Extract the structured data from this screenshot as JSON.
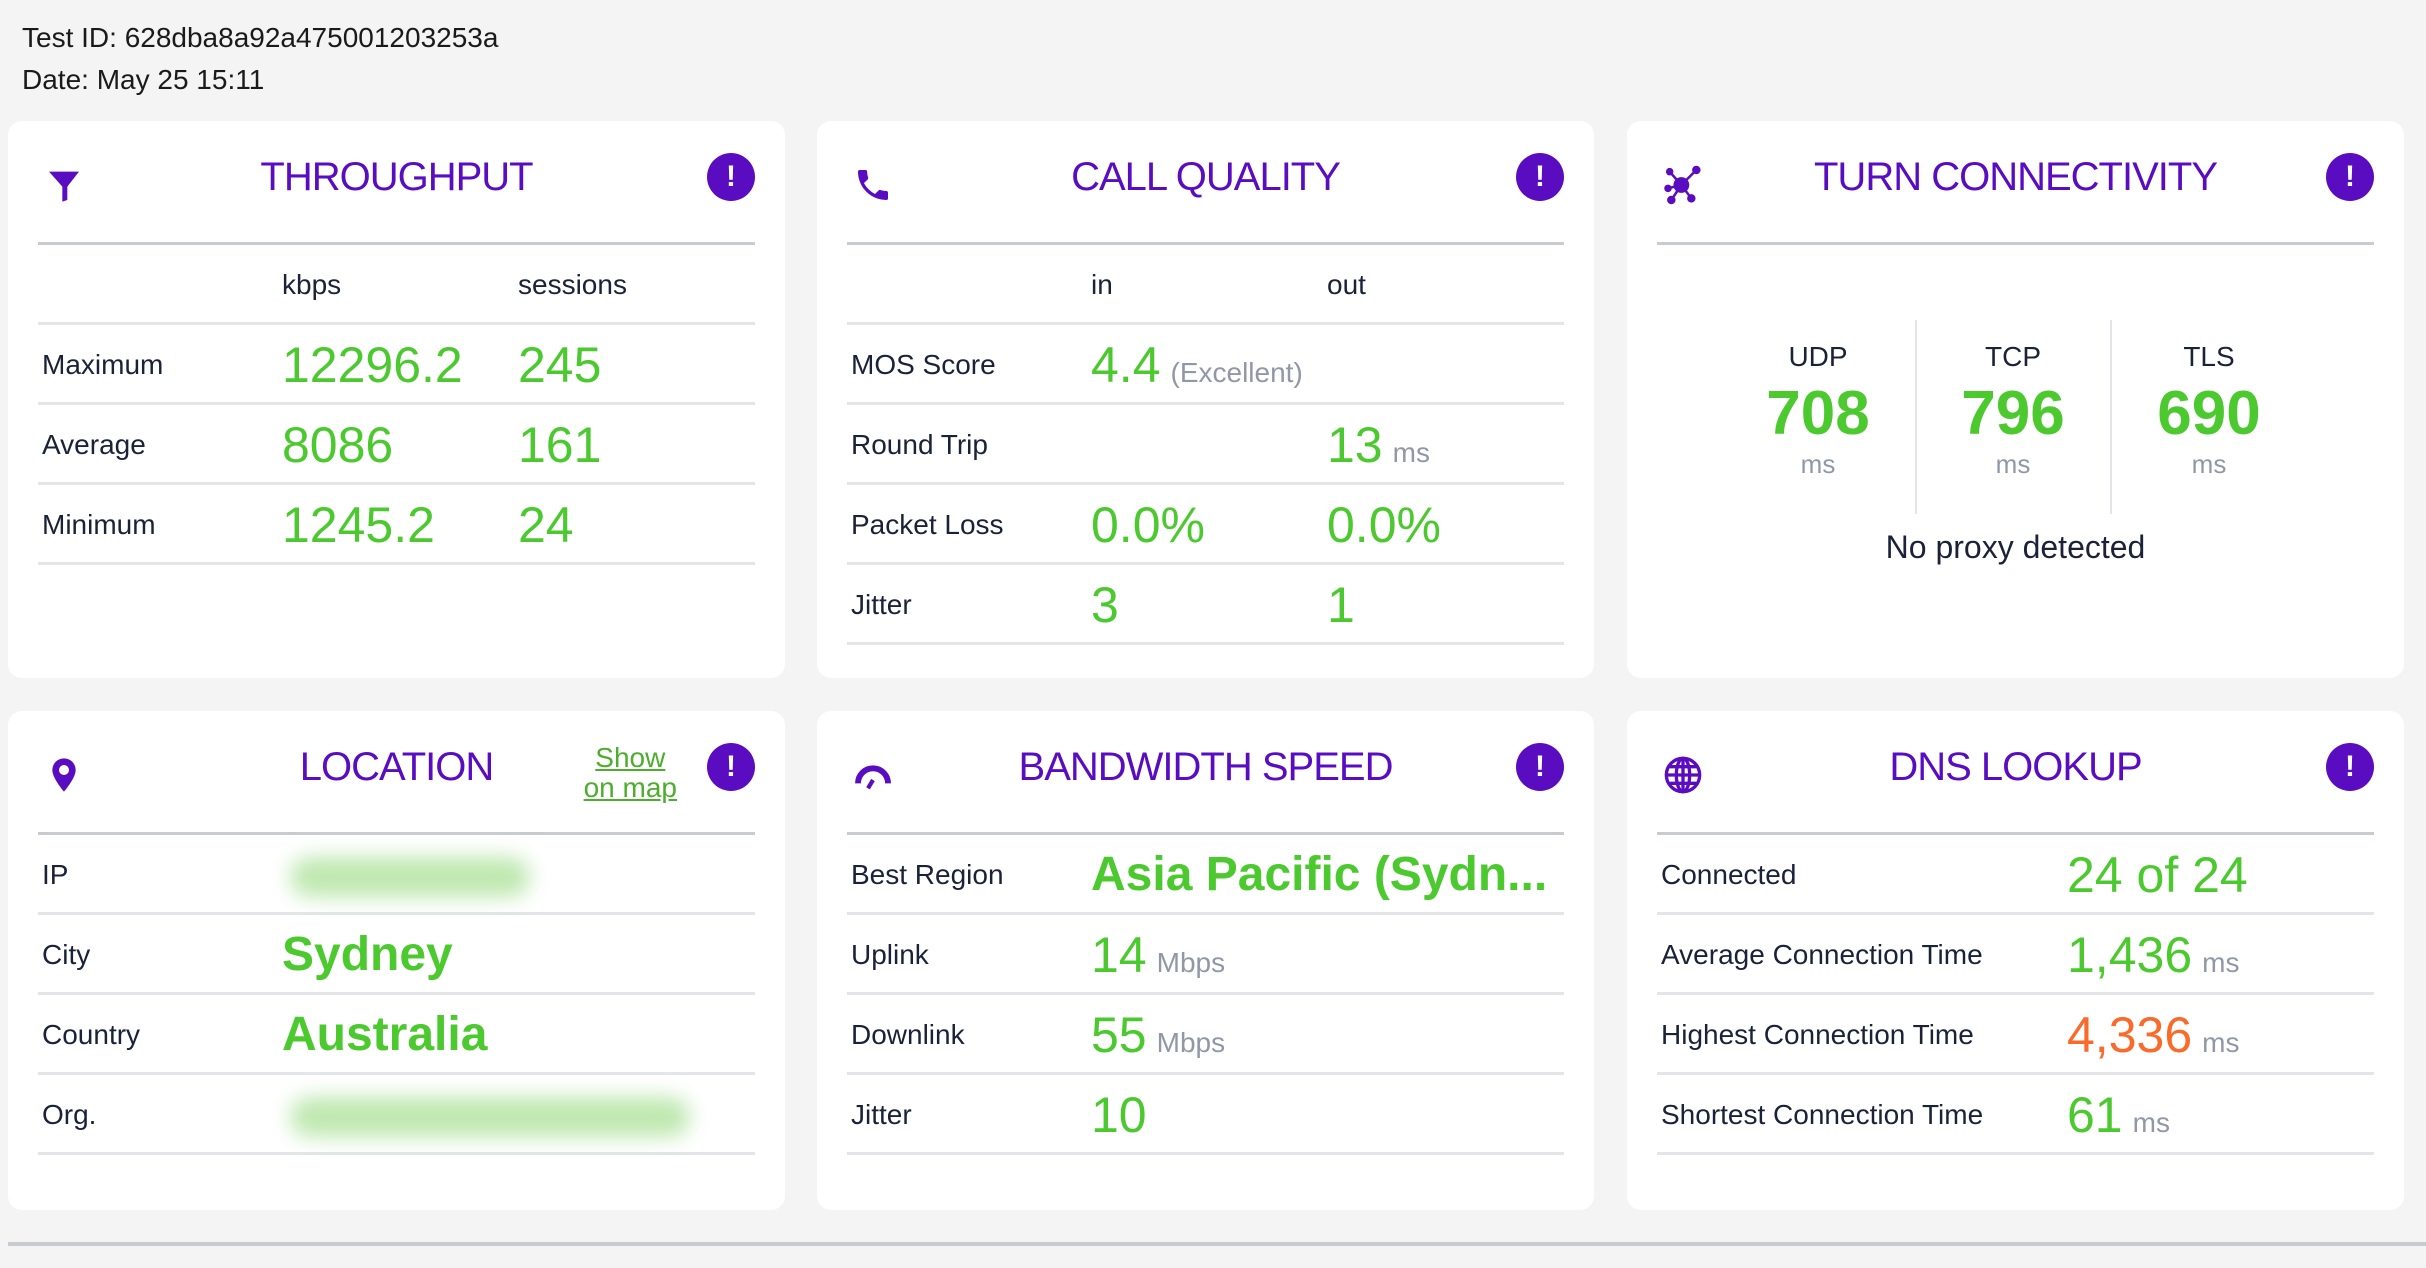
{
  "header": {
    "test_id": "Test ID: 628dba8a92a475001203253a",
    "date": "Date: May 25 15:11"
  },
  "colors": {
    "accent": "#5a0cc0",
    "good": "#4cc92f",
    "warn": "#fa6a2a",
    "unit": "#9097a6"
  },
  "throughput": {
    "title": "THROUGHPUT",
    "icon": "funnel-icon",
    "col1": "kbps",
    "col2": "sessions",
    "rows": [
      {
        "label": "Maximum",
        "kbps": "12296.2",
        "sessions": "245"
      },
      {
        "label": "Average",
        "kbps": "8086",
        "sessions": "161"
      },
      {
        "label": "Minimum",
        "kbps": "1245.2",
        "sessions": "24"
      }
    ]
  },
  "call": {
    "title": "CALL QUALITY",
    "icon": "phone-icon",
    "col1": "in",
    "col2": "out",
    "mos": {
      "label": "MOS Score",
      "value": "4.4",
      "note": "(Excellent)"
    },
    "rtt": {
      "label": "Round Trip",
      "value": "13",
      "unit": "ms"
    },
    "loss": {
      "label": "Packet Loss",
      "in": "0.0%",
      "out": "0.0%"
    },
    "jitter": {
      "label": "Jitter",
      "in": "3",
      "out": "1"
    }
  },
  "turn": {
    "title": "TURN CONNECTIVITY",
    "icon": "network-icon",
    "cols": [
      {
        "label": "UDP",
        "value": "708",
        "unit": "ms"
      },
      {
        "label": "TCP",
        "value": "796",
        "unit": "ms"
      },
      {
        "label": "TLS",
        "value": "690",
        "unit": "ms"
      }
    ],
    "proxy": "No proxy detected"
  },
  "location": {
    "title": "LOCATION",
    "icon": "map-pin-icon",
    "map_link_1": "Show",
    "map_link_2": "on map",
    "ip_label": "IP",
    "city_label": "City",
    "city": "Sydney",
    "country_label": "Country",
    "country": "Australia",
    "org_label": "Org."
  },
  "bandwidth": {
    "title": "BANDWIDTH SPEED",
    "icon": "speedometer-icon",
    "region": {
      "label": "Best Region",
      "value": "Asia Pacific (Sydn..."
    },
    "uplink": {
      "label": "Uplink",
      "value": "14",
      "unit": "Mbps"
    },
    "downlink": {
      "label": "Downlink",
      "value": "55",
      "unit": "Mbps"
    },
    "jitter": {
      "label": "Jitter",
      "value": "10"
    }
  },
  "dns": {
    "title": "DNS LOOKUP",
    "icon": "globe-icon",
    "connected": {
      "label": "Connected",
      "value": "24 of 24"
    },
    "avg": {
      "label": "Average Connection Time",
      "value": "1,436",
      "unit": "ms"
    },
    "high": {
      "label": "Highest Connection Time",
      "value": "4,336",
      "unit": "ms"
    },
    "short": {
      "label": "Shortest Connection Time",
      "value": "61",
      "unit": "ms"
    }
  },
  "alert_glyph": "!"
}
